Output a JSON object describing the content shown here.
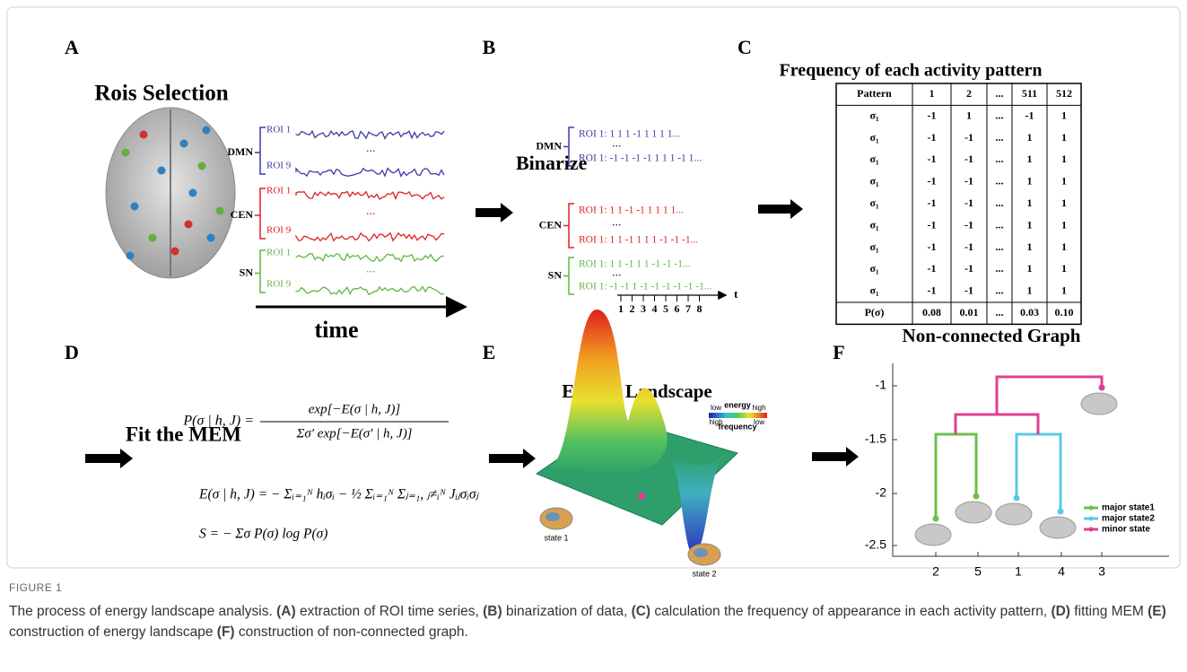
{
  "panels": {
    "a": {
      "letter": "A",
      "title": "Rois Selection",
      "networks": [
        "DMN",
        "CEN",
        "SN"
      ],
      "roi_first": "ROI 1",
      "roi_last": "ROI 9",
      "ellipsis": "...",
      "axis_label": "time"
    },
    "b": {
      "letter": "B",
      "arrow_label": "Binarize",
      "networks": [
        "DMN",
        "CEN",
        "SN"
      ],
      "rows": [
        "ROI 1: 1 1 1 -1 1 1 1 1...",
        "ROI 1: -1 -1 -1 -1 1 1 1 -1 1...",
        "ROI 1: 1 1 -1 -1 1 1 1 1...",
        "ROI 1: 1 1 -1 1 1 1 -1 -1 -1...",
        "ROI 1: 1 1 -1 1 1 -1 -1 -1...",
        "ROI 1: -1 -1 1 -1 -1 -1 -1 -1 -1..."
      ],
      "ellipsis": "...",
      "axis_ticks": [
        "1",
        "2",
        "3",
        "4",
        "5",
        "6",
        "7",
        "8"
      ],
      "axis_label": "t"
    },
    "c": {
      "letter": "C",
      "title": "Frequency of each activity pattern",
      "table": {
        "header": [
          "Pattern",
          "1",
          "2",
          "...",
          "511",
          "512"
        ],
        "rows": [
          [
            "σ₁",
            "-1",
            "1",
            "...",
            "-1",
            "1"
          ],
          [
            "σ₁",
            "-1",
            "-1",
            "...",
            "1",
            "1"
          ],
          [
            "σ₁",
            "-1",
            "-1",
            "...",
            "1",
            "1"
          ],
          [
            "σ₁",
            "-1",
            "-1",
            "...",
            "1",
            "1"
          ],
          [
            "σ₁",
            "-1",
            "-1",
            "...",
            "1",
            "1"
          ],
          [
            "σ₁",
            "-1",
            "-1",
            "...",
            "1",
            "1"
          ],
          [
            "σ₁",
            "-1",
            "-1",
            "...",
            "1",
            "1"
          ],
          [
            "σ₁",
            "-1",
            "-1",
            "...",
            "1",
            "1"
          ],
          [
            "σ₁",
            "-1",
            "-1",
            "...",
            "1",
            "1"
          ]
        ],
        "footer": [
          "P(σ)",
          "0.08",
          "0.01",
          "...",
          "0.03",
          "0.10"
        ]
      }
    },
    "d": {
      "letter": "D",
      "label": "Fit the MEM",
      "eq1": {
        "lhs": "P(σ | h, J) =",
        "numerator": "exp[−E(σ | h, J)]",
        "denominator": "Σσ′ exp[−E(σ′ | h, J)]"
      },
      "eq2": "E(σ | h, J) = − Σᵢ₌₁ᴺ hᵢσᵢ − ½ Σᵢ₌₁ᴺ Σⱼ₌₁, ⱼ≠ᵢᴺ Jᵢⱼσᵢσⱼ",
      "eq3": "S = − Σσ P(σ) log P(σ)"
    },
    "e": {
      "letter": "E",
      "title": "Energy Landscape",
      "colorbar": {
        "title": "energy",
        "energy_low": "low",
        "energy_high": "high",
        "freq_high": "high",
        "freq_low": "low",
        "subtitle": "frequency"
      },
      "states": [
        "state 1",
        "state 2"
      ]
    },
    "f": {
      "letter": "F",
      "title": "Non-connected Graph",
      "y_ticks": [
        "-1",
        "-1.5",
        "-2",
        "-2.5"
      ],
      "x_labels": [
        "2",
        "5",
        "1",
        "4",
        "3"
      ],
      "legend": [
        {
          "name": "major state1",
          "color": "#6cc04a"
        },
        {
          "name": "major state2",
          "color": "#5bc8e8"
        },
        {
          "name": "minor state",
          "color": "#e0408f"
        }
      ]
    }
  },
  "caption": {
    "label": "FIGURE 1",
    "intro": "The process of energy landscape analysis.",
    "items": [
      {
        "tag": "(A)",
        "text": "extraction of ROI time series,"
      },
      {
        "tag": "(B)",
        "text": "binarization of data,"
      },
      {
        "tag": "(C)",
        "text": "calculation the frequency of appearance in each activity pattern,"
      },
      {
        "tag": "(D)",
        "text": "fitting MEM"
      },
      {
        "tag": "(E)",
        "text": "construction of energy landscape"
      },
      {
        "tag": "(F)",
        "text": "construction of non-connected graph."
      }
    ]
  }
}
